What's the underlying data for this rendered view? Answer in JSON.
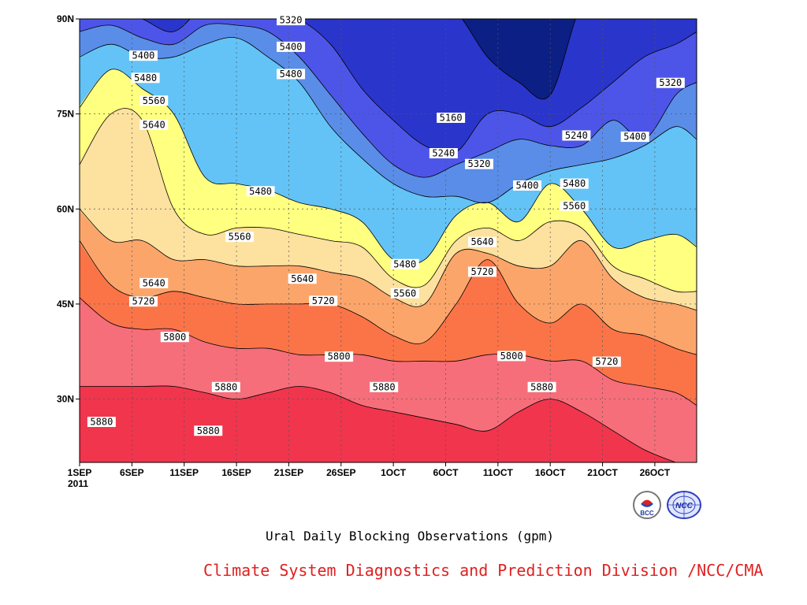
{
  "chart_data": {
    "type": "heatmap",
    "subtype": "filled-contour (latitude-time Hovmoller)",
    "title": "Ural Daily Blocking Observations (gpm)",
    "x_ticks": [
      "1SEP",
      "6SEP",
      "11SEP",
      "16SEP",
      "21SEP",
      "26SEP",
      "1OCT",
      "6OCT",
      "11OCT",
      "16OCT",
      "21OCT",
      "26OCT"
    ],
    "x_tick_note": "2011",
    "x_range_days": [
      0,
      59
    ],
    "y_ticks": [
      "30N",
      "45N",
      "60N",
      "75N",
      "90N"
    ],
    "y_range_deg": [
      20,
      90
    ],
    "grid": true,
    "contour_levels": [
      5160,
      5240,
      5320,
      5400,
      5480,
      5560,
      5640,
      5720,
      5800,
      5880
    ],
    "fill_colors": [
      "#0c1f85",
      "#2a35cc",
      "#4d55e8",
      "#5a8de8",
      "#63c3f6",
      "#ffff80",
      "#fde19f",
      "#fca56a",
      "#fb7448",
      "#f66e7a",
      "#f0354d"
    ],
    "contour_days": [
      0,
      3,
      6,
      9,
      12,
      15,
      18,
      21,
      24,
      27,
      30,
      33,
      36,
      39,
      42,
      45,
      48,
      51,
      54,
      57,
      59
    ],
    "contour_isolines": [
      {
        "level": 5160,
        "lat": [
          92,
          92,
          92,
          92,
          92,
          92,
          92,
          92,
          92,
          92,
          92,
          92,
          91,
          84,
          80,
          78,
          92,
          92,
          92,
          92,
          92
        ]
      },
      {
        "level": 5240,
        "lat": [
          92,
          92,
          90,
          88,
          92,
          92,
          92,
          90,
          86,
          79,
          74,
          70,
          69,
          75,
          75,
          73,
          76,
          80,
          84,
          86,
          88
        ]
      },
      {
        "level": 5320,
        "lat": [
          88,
          89,
          87,
          86,
          89,
          89,
          88,
          84,
          78,
          72,
          67,
          65,
          67,
          69,
          71,
          70,
          70,
          74,
          71,
          78,
          80
        ]
      },
      {
        "level": 5400,
        "lat": [
          84,
          86,
          84,
          84,
          86,
          87,
          84,
          80,
          73,
          68,
          64,
          62,
          62,
          61,
          64,
          66,
          67,
          68,
          70,
          73,
          71
        ]
      },
      {
        "level": 5480,
        "lat": [
          76,
          82,
          79,
          75,
          65,
          64,
          63,
          61,
          60,
          58,
          52,
          52,
          59,
          61,
          58,
          64,
          60,
          54,
          55,
          56,
          54
        ]
      },
      {
        "level": 5560,
        "lat": [
          67,
          75,
          74,
          60,
          56,
          57,
          57,
          56,
          55,
          54,
          49,
          48,
          55,
          57,
          55,
          58,
          57,
          51,
          49,
          47,
          47
        ]
      },
      {
        "level": 5640,
        "lat": [
          60,
          55,
          55,
          52,
          52,
          51,
          51,
          51,
          50,
          49,
          46,
          45,
          53,
          53,
          51,
          51,
          55,
          49,
          46,
          45,
          44
        ]
      },
      {
        "level": 5720,
        "lat": [
          55,
          48,
          46,
          47,
          46,
          45,
          45,
          45,
          45,
          43,
          40,
          39,
          45,
          52,
          45,
          42,
          45,
          41,
          40,
          38,
          37
        ]
      },
      {
        "level": 5800,
        "lat": [
          46,
          42,
          41,
          41,
          39,
          38,
          38,
          37,
          37,
          37,
          36,
          36,
          36,
          37,
          37,
          36,
          36,
          33,
          32,
          31,
          29
        ]
      },
      {
        "level": 5880,
        "lat": [
          32,
          32,
          32,
          32,
          31,
          30,
          31,
          32,
          31,
          29,
          28,
          27,
          26,
          25,
          28,
          30,
          28,
          25,
          22,
          20,
          19
        ]
      }
    ],
    "contour_labels": [
      {
        "value": "5320",
        "day": 20.2,
        "lat": 89.8
      },
      {
        "value": "5400",
        "day": 20.2,
        "lat": 85.6
      },
      {
        "value": "5480",
        "day": 20.2,
        "lat": 81.3
      },
      {
        "value": "5400",
        "day": 6.1,
        "lat": 84.2
      },
      {
        "value": "5480",
        "day": 6.3,
        "lat": 80.7
      },
      {
        "value": "5560",
        "day": 7.1,
        "lat": 77.1
      },
      {
        "value": "5640",
        "day": 7.1,
        "lat": 73.3
      },
      {
        "value": "5160",
        "day": 35.5,
        "lat": 74.4
      },
      {
        "value": "5240",
        "day": 34.8,
        "lat": 68.8
      },
      {
        "value": "5320",
        "day": 38.2,
        "lat": 67.1
      },
      {
        "value": "5240",
        "day": 47.5,
        "lat": 71.6
      },
      {
        "value": "5320",
        "day": 56.5,
        "lat": 79.9
      },
      {
        "value": "5400",
        "day": 53.1,
        "lat": 71.4
      },
      {
        "value": "5400",
        "day": 42.8,
        "lat": 63.7
      },
      {
        "value": "5480",
        "day": 47.3,
        "lat": 64.0
      },
      {
        "value": "5560",
        "day": 47.3,
        "lat": 60.5
      },
      {
        "value": "5480",
        "day": 17.3,
        "lat": 62.8
      },
      {
        "value": "5560",
        "day": 15.3,
        "lat": 55.6
      },
      {
        "value": "5480",
        "day": 31.1,
        "lat": 51.3
      },
      {
        "value": "5560",
        "day": 31.1,
        "lat": 46.7
      },
      {
        "value": "5640",
        "day": 38.5,
        "lat": 54.8
      },
      {
        "value": "5720",
        "day": 38.5,
        "lat": 50.1
      },
      {
        "value": "5640",
        "day": 7.1,
        "lat": 48.3
      },
      {
        "value": "5720",
        "day": 6.1,
        "lat": 45.4
      },
      {
        "value": "5640",
        "day": 21.3,
        "lat": 49.0
      },
      {
        "value": "5720",
        "day": 23.3,
        "lat": 45.5
      },
      {
        "value": "5800",
        "day": 9.1,
        "lat": 39.8
      },
      {
        "value": "5800",
        "day": 24.8,
        "lat": 36.7
      },
      {
        "value": "5800",
        "day": 41.3,
        "lat": 36.8
      },
      {
        "value": "5720",
        "day": 50.4,
        "lat": 35.9
      },
      {
        "value": "5880",
        "day": 14.0,
        "lat": 31.9
      },
      {
        "value": "5880",
        "day": 29.1,
        "lat": 31.9
      },
      {
        "value": "5880",
        "day": 44.2,
        "lat": 31.9
      },
      {
        "value": "5880",
        "day": 2.1,
        "lat": 26.4
      },
      {
        "value": "5880",
        "day": 12.3,
        "lat": 25.0
      }
    ]
  },
  "credit": "Climate System Diagnostics and Prediction Division /NCC/CMA",
  "logos": {
    "bcc_text": "BCC",
    "ncc_text": "NCC"
  }
}
